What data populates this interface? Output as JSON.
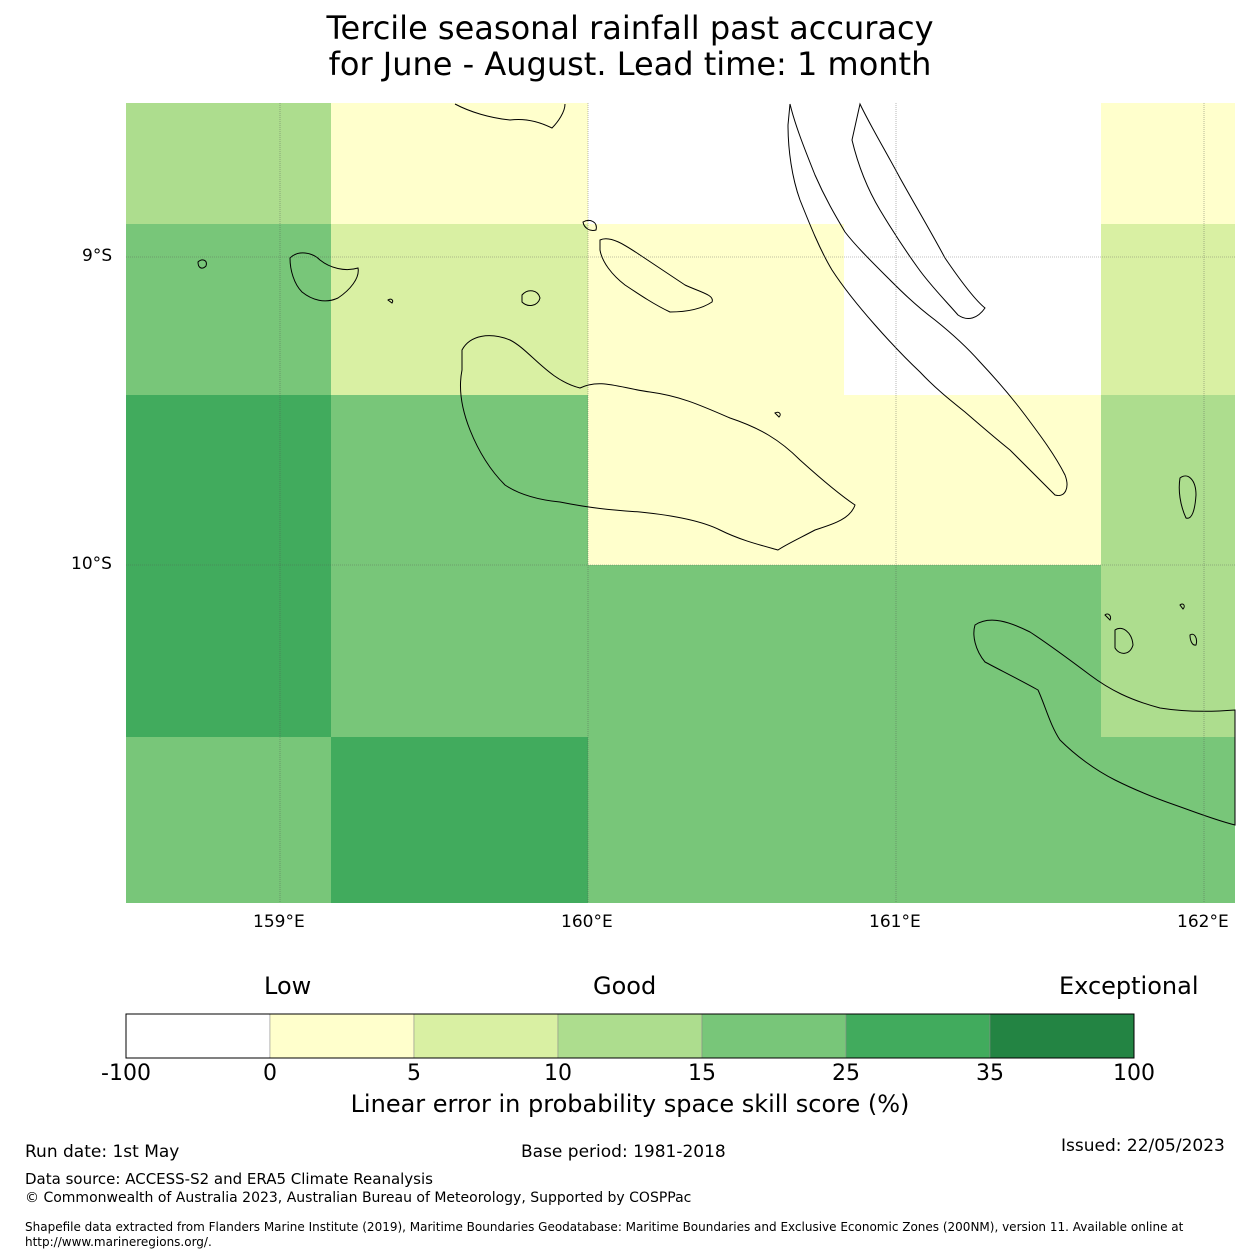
{
  "title": {
    "line1": "Tercile seasonal rainfall past accuracy",
    "line2": "for June - August. Lead time: 1 month"
  },
  "map": {
    "lat_labels": [
      "9°S",
      "10°S"
    ],
    "lon_labels": [
      "159°E",
      "160°E",
      "161°E",
      "162°E"
    ],
    "colors": {
      "white": "#ffffff",
      "yellow": "#ffffcc",
      "light_green": "#d9f0a3",
      "mid_light_green": "#addd8e",
      "mid_green": "#78c679",
      "green": "#41ab5d",
      "dark_green": "#238443"
    },
    "grid_cells": [
      {
        "row": 0,
        "col": 0,
        "cls": "mid_light_green"
      },
      {
        "row": 0,
        "col": 1,
        "cls": "yellow"
      },
      {
        "row": 0,
        "col": 2,
        "cls": "white"
      },
      {
        "row": 0,
        "col": 3,
        "cls": "white"
      },
      {
        "row": 0,
        "col": 4,
        "cls": "yellow"
      },
      {
        "row": 1,
        "col": 0,
        "cls": "mid_green"
      },
      {
        "row": 1,
        "col": 1,
        "cls": "light_green"
      },
      {
        "row": 1,
        "col": 2,
        "cls": "yellow"
      },
      {
        "row": 1,
        "col": 3,
        "cls": "white"
      },
      {
        "row": 1,
        "col": 4,
        "cls": "light_green"
      },
      {
        "row": 2,
        "col": 0,
        "cls": "green"
      },
      {
        "row": 2,
        "col": 1,
        "cls": "mid_green"
      },
      {
        "row": 2,
        "col": 2,
        "cls": "yellow"
      },
      {
        "row": 2,
        "col": 3,
        "cls": "yellow"
      },
      {
        "row": 2,
        "col": 4,
        "cls": "mid_light_green"
      },
      {
        "row": 3,
        "col": 0,
        "cls": "green"
      },
      {
        "row": 3,
        "col": 1,
        "cls": "mid_green"
      },
      {
        "row": 3,
        "col": 2,
        "cls": "mid_green"
      },
      {
        "row": 3,
        "col": 3,
        "cls": "mid_green"
      },
      {
        "row": 3,
        "col": 4,
        "cls": "mid_light_green"
      },
      {
        "row": 4,
        "col": 0,
        "cls": "mid_green"
      },
      {
        "row": 4,
        "col": 1,
        "cls": "green"
      },
      {
        "row": 4,
        "col": 2,
        "cls": "mid_green"
      },
      {
        "row": 4,
        "col": 3,
        "cls": "mid_green"
      },
      {
        "row": 4,
        "col": 4,
        "cls": "mid_green"
      }
    ]
  },
  "colorbar": {
    "heads": {
      "low": "Low",
      "good": "Good",
      "exceptional": "Exceptional"
    },
    "ticks": [
      "-100",
      "0",
      "5",
      "10",
      "15",
      "25",
      "35",
      "100"
    ],
    "segments": [
      "#ffffff",
      "#ffffcc",
      "#d9f0a3",
      "#addd8e",
      "#78c679",
      "#41ab5d",
      "#238443"
    ],
    "label": "Linear error in probability space skill score (%)"
  },
  "footer": {
    "run_date": "Run date: 1st May",
    "base_period": "Base period: 1981-2018",
    "issued": "Issued: 22/05/2023",
    "data_source": "Data source: ACCESS-S2 and ERA5 Climate Reanalysis",
    "copyright": "© Commonwealth of Australia 2023, Australian Bureau of Meteorology, Supported by COSPPac",
    "shapefile_line1": "Shapefile data extracted from Flanders Marine Institute (2019), Maritime Boundaries Geodatabase: Maritime Boundaries and Exclusive Economic Zones (200NM), version 11. Available online at",
    "shapefile_line2": "http://www.marineregions.org/."
  }
}
